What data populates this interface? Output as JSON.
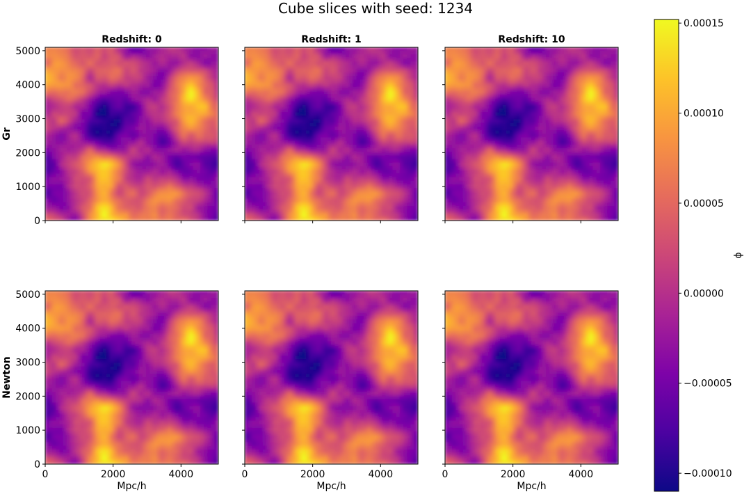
{
  "chart_data": {
    "type": "heatmap",
    "title": "Cube slices with seed: 1234",
    "columns": [
      "Redshift: 0",
      "Redshift: 1",
      "Redshift: 10"
    ],
    "rows": [
      "Gr",
      "Newton"
    ],
    "xlabel": "Mpc/h",
    "xlim": [
      0,
      5100
    ],
    "ylim": [
      0,
      5100
    ],
    "xticks": [
      0,
      2000,
      4000
    ],
    "yticks": [
      0,
      1000,
      2000,
      3000,
      4000,
      5000
    ],
    "colormap": "plasma",
    "colorbar": {
      "label": "ϕ",
      "min": -0.00011,
      "max": 0.000152,
      "ticks": [
        -0.0001,
        -5e-05,
        0.0,
        5e-05,
        0.0001,
        0.00015
      ],
      "tick_labels": [
        "−0.00010",
        "−0.00005",
        "0.00000",
        "0.00005",
        "0.00010",
        "0.00015"
      ]
    },
    "field": {
      "description_source": "same potential field in all six panels",
      "grid_size": 48
    }
  }
}
